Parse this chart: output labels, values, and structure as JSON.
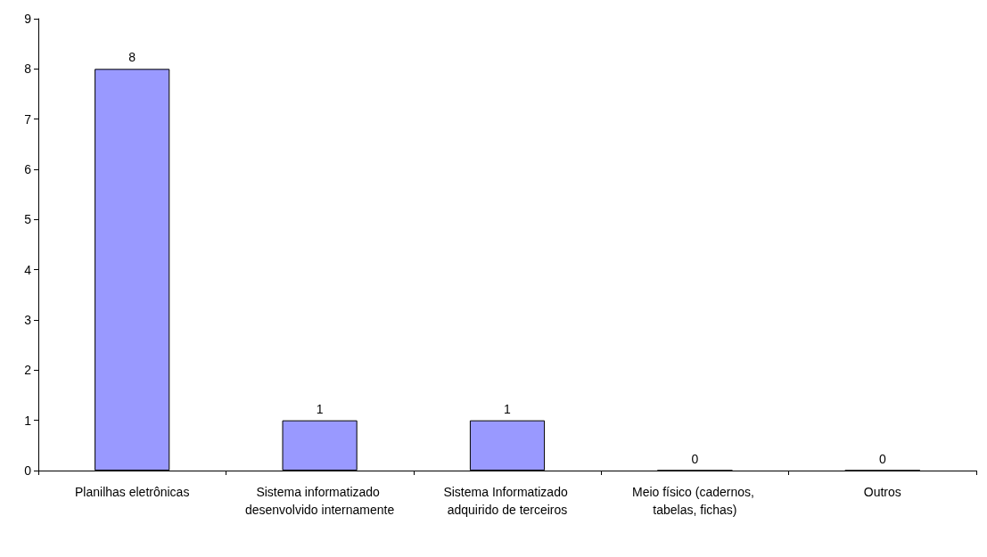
{
  "chart_data": {
    "type": "bar",
    "categories": [
      "Planilhas eletrônicas",
      "Sistema informatizado desenvolvido internamente",
      "Sistema Informatizado adquirido de terceiros",
      "Meio físico (cadernos, tabelas, fichas)",
      "Outros"
    ],
    "values": [
      8,
      1,
      1,
      0,
      0
    ],
    "color": "#9999ff",
    "ylim": [
      0,
      9
    ],
    "yticks": [
      0,
      1,
      2,
      3,
      4,
      5,
      6,
      7,
      8,
      9
    ],
    "grid": false,
    "data_labels": true
  }
}
